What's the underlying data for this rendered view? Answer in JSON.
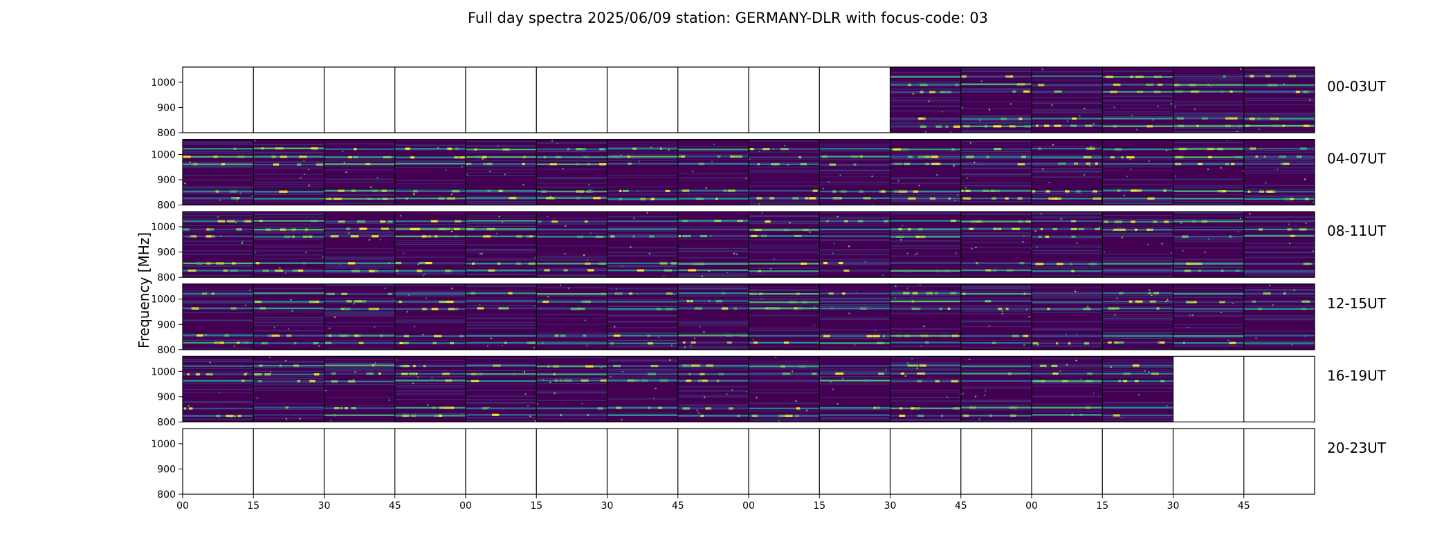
{
  "chart_data": {
    "type": "heatmap",
    "title": "Full day spectra 2025/06/09 station: GERMANY-DLR with focus-code: 03",
    "ylabel": "Frequency [MHz]",
    "xlabel": "",
    "ylim": [
      800,
      1060
    ],
    "y_ticks": [
      800,
      900,
      1000
    ],
    "x_tick_labels": [
      "00",
      "15",
      "30",
      "45",
      "00",
      "15",
      "30",
      "45",
      "00",
      "15",
      "30",
      "45",
      "00",
      "15",
      "30",
      "45"
    ],
    "segment_minutes": 15,
    "colormap": "viridis",
    "colormap_stops": [
      "#440154",
      "#3b528b",
      "#21918c",
      "#5ec962",
      "#fde725"
    ],
    "hot_bands_mhz": [
      1022,
      990,
      962,
      855,
      826
    ],
    "rows": [
      {
        "label": "00-03UT",
        "start_hour": 0,
        "available_segments": [
          10,
          11,
          12,
          13,
          14,
          15
        ]
      },
      {
        "label": "04-07UT",
        "start_hour": 4,
        "available_segments": [
          0,
          1,
          2,
          3,
          4,
          5,
          6,
          7,
          8,
          9,
          10,
          11,
          12,
          13,
          14,
          15
        ]
      },
      {
        "label": "08-11UT",
        "start_hour": 8,
        "available_segments": [
          0,
          1,
          2,
          3,
          4,
          5,
          6,
          7,
          8,
          9,
          10,
          11,
          12,
          13,
          14,
          15
        ]
      },
      {
        "label": "12-15UT",
        "start_hour": 12,
        "available_segments": [
          0,
          1,
          2,
          3,
          4,
          5,
          6,
          7,
          8,
          9,
          10,
          11,
          12,
          13,
          14,
          15
        ]
      },
      {
        "label": "16-19UT",
        "start_hour": 16,
        "available_segments": [
          0,
          1,
          2,
          3,
          4,
          5,
          6,
          7,
          8,
          9,
          10,
          11,
          12,
          13
        ]
      },
      {
        "label": "20-23UT",
        "start_hour": 20,
        "available_segments": []
      }
    ],
    "colors": {
      "background": "#440154",
      "empty_panel": "#ffffff",
      "axis": "#000000"
    }
  }
}
